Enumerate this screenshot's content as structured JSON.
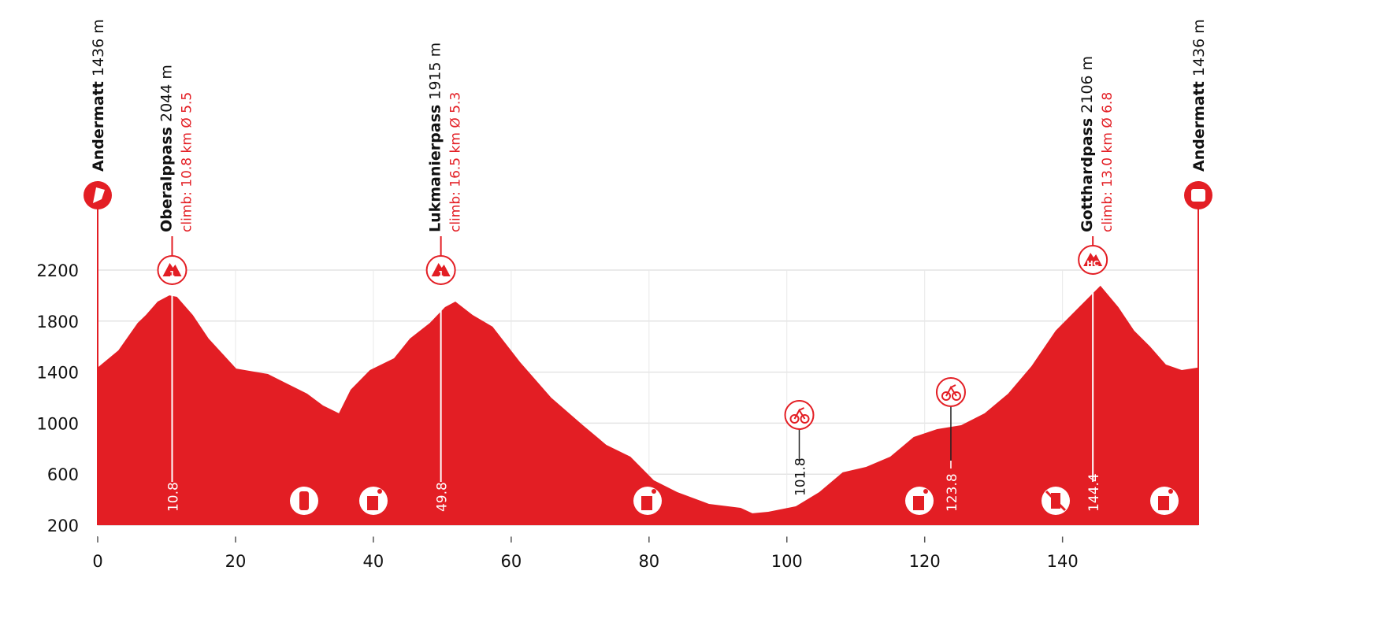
{
  "chart_data": {
    "type": "area",
    "color": "#e31e24",
    "grid": true,
    "xlim": [
      0,
      159.7
    ],
    "ylim": [
      200,
      2200
    ],
    "xticks": [
      0,
      20,
      40,
      60,
      80,
      100,
      120,
      140
    ],
    "yticks": [
      200,
      600,
      1000,
      1400,
      1800,
      2200
    ],
    "x": [
      0,
      3,
      5.8,
      7,
      8.7,
      10.4,
      11.5,
      13.8,
      16.1,
      20.1,
      24.7,
      27,
      30.4,
      32.7,
      35,
      36.7,
      39.5,
      43,
      45.3,
      48.2,
      50.4,
      51.9,
      54.4,
      57.3,
      61.3,
      65.8,
      70.4,
      73.8,
      77.3,
      80.7,
      84.1,
      88.7,
      93.3,
      95,
      97.3,
      101.3,
      104.7,
      108.1,
      111.5,
      115,
      118.4,
      121.8,
      125.3,
      128.7,
      132.1,
      135.5,
      139,
      142.4,
      145.5,
      148.1,
      150.4,
      152.7,
      155,
      157.3,
      159.7
    ],
    "values": [
      1436,
      1570,
      1786,
      1848,
      1953,
      2002,
      1990,
      1848,
      1663,
      1428,
      1385,
      1323,
      1231,
      1138,
      1077,
      1262,
      1416,
      1509,
      1663,
      1786,
      1910,
      1953,
      1848,
      1756,
      1478,
      1200,
      984,
      830,
      737,
      552,
      459,
      367,
      336,
      293,
      305,
      348,
      459,
      614,
      657,
      737,
      891,
      953,
      984,
      1077,
      1231,
      1447,
      1725,
      1910,
      2077,
      1910,
      1725,
      1601,
      1459,
      1416,
      1436
    ],
    "start": {
      "name": "Andermatt",
      "altitude": "1436 m"
    },
    "finish": {
      "name": "Andermatt",
      "altitude": "1436 m"
    },
    "summits": [
      {
        "name": "Oberalppass",
        "altitude": "2044 m",
        "climb": "climb: 10.8 km Ø 5.5",
        "category": "1",
        "km": 10.8
      },
      {
        "name": "Lukmanierpass",
        "altitude": "1915 m",
        "climb": "climb: 16.5 km Ø 5.3",
        "category": "1",
        "km": 49.8
      },
      {
        "name": "Gotthardpass",
        "altitude": "2106 m",
        "climb": "climb: 13.0 km Ø 6.8",
        "category": "HC",
        "km": 144.4
      }
    ],
    "sprints": [
      {
        "km": 101.8
      },
      {
        "km": 123.8
      }
    ]
  }
}
